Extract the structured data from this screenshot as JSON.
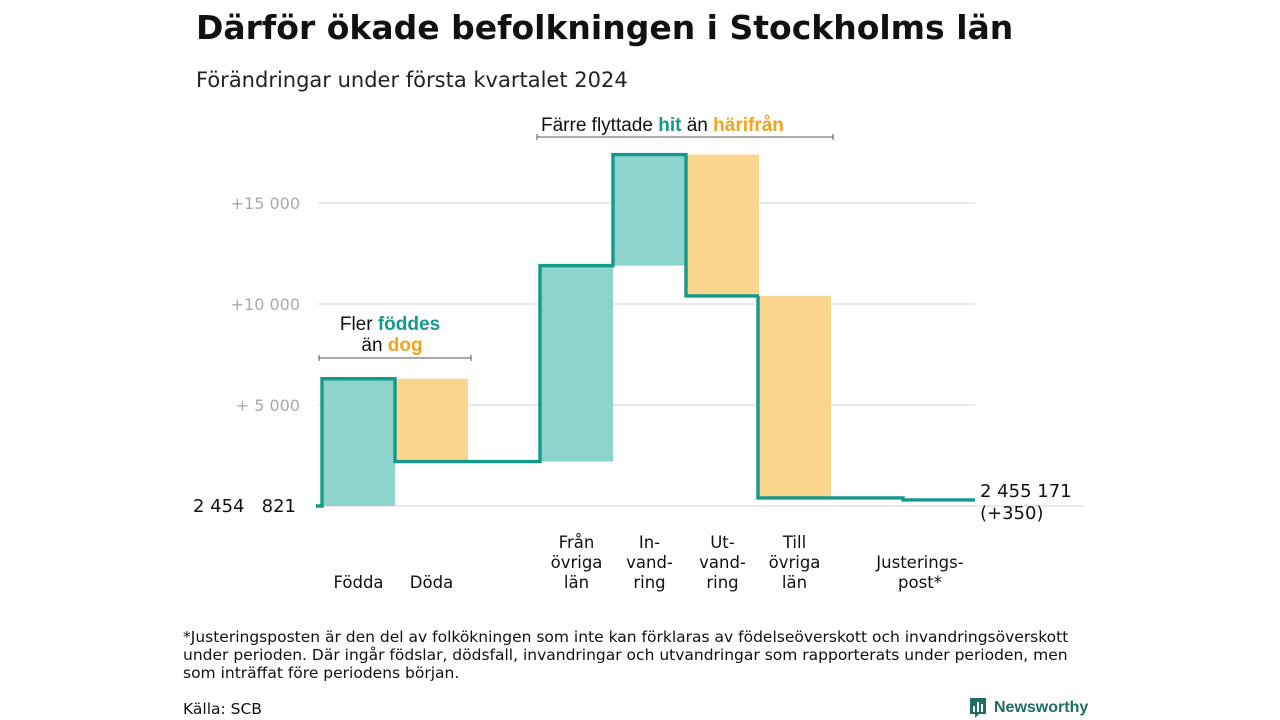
{
  "title": "Därför ökade befolkningen i Stockholms län",
  "subtitle": "Förändringar under första kvartalet 2024",
  "colors": {
    "increase": "#8dd5cc",
    "decrease": "#fad58e",
    "line": "#14998a",
    "grid": "#dddddd"
  },
  "chart_data": {
    "type": "waterfall",
    "start": {
      "label": "2 454   821",
      "value": 0
    },
    "end": {
      "label_line1": "2 455 171",
      "label_line2": "(+350)",
      "value": 350
    },
    "ylim": [
      0,
      18000
    ],
    "yticks": [
      {
        "value": 15000,
        "label": "+15   000"
      },
      {
        "value": 10000,
        "label": "+10   000"
      },
      {
        "value": 5000,
        "label": "+  5  000"
      }
    ],
    "steps": [
      {
        "label_lines": [
          "Födda"
        ],
        "change": 6300,
        "kind": "increase"
      },
      {
        "label_lines": [
          "Döda"
        ],
        "change": -4100,
        "kind": "decrease"
      },
      {
        "label_lines": [
          "Från",
          "övriga",
          "län"
        ],
        "change": 9700,
        "kind": "increase"
      },
      {
        "label_lines": [
          "In-",
          "vand-",
          "ring"
        ],
        "change": 5500,
        "kind": "increase"
      },
      {
        "label_lines": [
          "Ut-",
          "vand-",
          "ring"
        ],
        "change": -7000,
        "kind": "decrease"
      },
      {
        "label_lines": [
          "Till",
          "övriga",
          "län"
        ],
        "change": -10000,
        "kind": "decrease"
      },
      {
        "label_lines": [
          "Justerings-",
          "post*"
        ],
        "change": -100,
        "kind": "adjustment"
      }
    ],
    "annotations": {
      "births": {
        "line1_a": "Fler ",
        "line1_b": "föddes",
        "line2_a": "än ",
        "line2_b": "dog"
      },
      "migration": {
        "a": "Färre flyttade ",
        "b": "hit",
        "c": " än ",
        "d": "härifrån"
      }
    }
  },
  "footnote": "*Justeringsposten är den del av folkökningen som inte kan förklaras av födelseöverskott och invandringsöverskott under perioden. Där ingår födslar, dödsfall, invandringar och utvandringar som rapporterats under perioden, men som inträffat före periodens början.",
  "source": "Källa: SCB",
  "brand": {
    "name": "Newsworthy",
    "icon": "bar-chart-icon"
  }
}
